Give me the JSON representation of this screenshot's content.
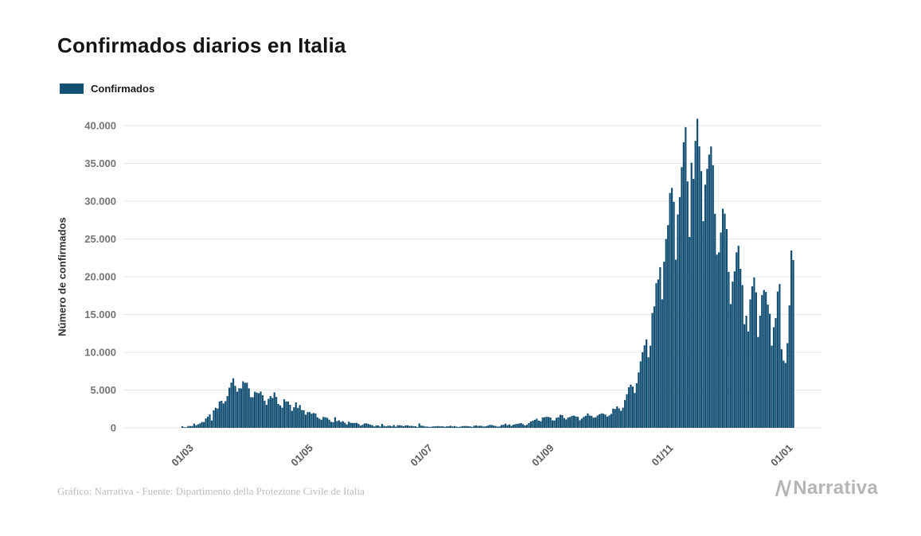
{
  "title": "Confirmados diarios en Italia",
  "legend": {
    "label": "Confirmados"
  },
  "footer": {
    "source": "Gráfico: Narrativa - Fuente: Dipartimento della Protezione Civile de Italia",
    "brand": "Narrativa"
  },
  "chart_data": {
    "type": "bar",
    "title": "Confirmados diarios en Italia",
    "xlabel": "",
    "ylabel": "Número de confirmados",
    "series_name": "Confirmados",
    "bar_color": "#124f73",
    "grid": "horizontal",
    "legend_position": "top-left",
    "ylim": [
      0,
      40000
    ],
    "y_ticks": [
      0,
      5000,
      10000,
      15000,
      20000,
      25000,
      30000,
      35000,
      40000
    ],
    "y_tick_labels": [
      "0",
      "5.000",
      "10.000",
      "15.000",
      "20.000",
      "25.000",
      "30.000",
      "35.000",
      "40.000"
    ],
    "x_start_date": "2020-02-24",
    "x_tick_labels": [
      "01/03",
      "01/05",
      "01/07",
      "01/09",
      "01/11",
      "01/01"
    ],
    "x_tick_indices": [
      6,
      67,
      128,
      190,
      251,
      312
    ],
    "values": [
      221,
      93,
      78,
      250,
      238,
      240,
      566,
      342,
      466,
      587,
      769,
      778,
      1247,
      1492,
      1797,
      977,
      2313,
      2651,
      2547,
      3497,
      3590,
      3233,
      3526,
      4207,
      5322,
      5986,
      6557,
      5560,
      4789,
      5249,
      5210,
      6153,
      5959,
      5974,
      5217,
      4050,
      4053,
      4782,
      4668,
      4585,
      4805,
      4316,
      3599,
      3039,
      3836,
      4204,
      3951,
      4694,
      4092,
      3153,
      2972,
      2667,
      3786,
      3493,
      3491,
      3047,
      2256,
      2729,
      3370,
      2646,
      3021,
      2357,
      2324,
      1739,
      2091,
      2086,
      1872,
      1965,
      1900,
      1389,
      1221,
      1075,
      1444,
      1401,
      1327,
      1083,
      802,
      744,
      1402,
      888,
      992,
      789,
      875,
      675,
      451,
      813,
      665,
      642,
      652,
      669,
      531,
      300,
      397,
      584,
      593,
      516,
      416,
      355,
      178,
      318,
      321,
      177,
      518,
      270,
      197,
      280,
      283,
      202,
      379,
      163,
      346,
      338,
      301,
      210,
      329,
      331,
      251,
      262,
      224,
      221,
      113,
      577,
      296,
      255,
      175,
      174,
      126,
      142,
      187,
      201,
      223,
      235,
      192,
      208,
      137,
      193,
      214,
      276,
      188,
      234,
      169,
      114,
      162,
      230,
      233,
      249,
      219,
      190,
      128,
      282,
      306,
      252,
      275,
      255,
      170,
      212,
      289,
      386,
      379,
      295,
      239,
      159,
      190,
      384,
      402,
      552,
      347,
      463,
      259,
      412,
      481,
      523,
      574,
      629,
      479,
      320,
      403,
      642,
      845,
      947,
      1071,
      1210,
      953,
      878,
      1367,
      1411,
      1462,
      1444,
      1365,
      996,
      978,
      1326,
      1397,
      1733,
      1694,
      1297,
      1108,
      1370,
      1434,
      1597,
      1616,
      1501,
      1458,
      1008,
      1229,
      1452,
      1585,
      1907,
      1638,
      1587,
      1350,
      1392,
      1640,
      1786,
      1912,
      1869,
      1766,
      1494,
      1648,
      1851,
      2548,
      2499,
      2844,
      2578,
      2257,
      2677,
      3678,
      4458,
      5372,
      5724,
      5456,
      4619,
      5901,
      7332,
      8804,
      10010,
      10925,
      11705,
      9338,
      10874,
      15199,
      16079,
      19143,
      19644,
      21273,
      17012,
      21994,
      24991,
      26831,
      31084,
      31758,
      29907,
      22253,
      28244,
      30550,
      34505,
      37809,
      39811,
      32616,
      25271,
      35098,
      32961,
      37978,
      40902,
      37255,
      33979,
      27354,
      32191,
      34283,
      36176,
      37242,
      34767,
      28337,
      22930,
      23232,
      25853,
      29003,
      28352,
      26323,
      20648,
      16377,
      19350,
      20709,
      23225,
      24099,
      21052,
      18887,
      13720,
      14842,
      12756,
      16999,
      18727,
      19903,
      17938,
      12030,
      14844,
      17572,
      18236,
      17992,
      16308,
      15104,
      10872,
      13318,
      14522,
      18040,
      19037,
      10407,
      8913,
      8585,
      11212,
      16202,
      23477,
      22211
    ]
  }
}
